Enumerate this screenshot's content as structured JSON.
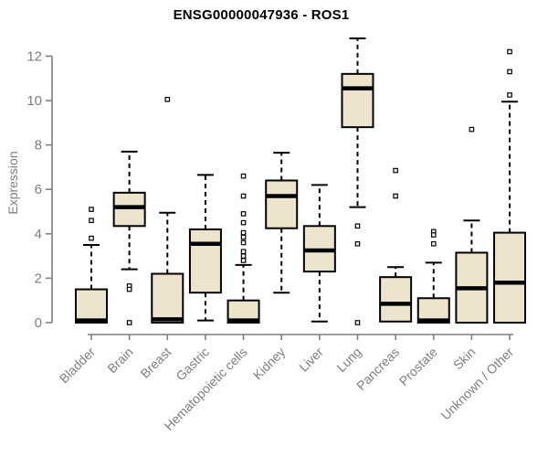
{
  "chart_data": {
    "type": "boxplot",
    "title": "ENSG00000047936 - ROS1",
    "ylabel": "Expression",
    "xlabel": "",
    "ylim": [
      0,
      12
    ],
    "yticks": [
      0,
      2,
      4,
      6,
      8,
      10,
      12
    ],
    "grid": false,
    "legend": "none",
    "categories": [
      "Bladder",
      "Brain",
      "Breast",
      "Gastric",
      "Hematopoietic cells",
      "Kidney",
      "Liver",
      "Lung",
      "Pancreas",
      "Prostate",
      "Skin",
      "Unknown / Other"
    ],
    "boxes": [
      {
        "category": "Bladder",
        "whisker_low": 0,
        "q1": 0,
        "median": 0.1,
        "q3": 1.5,
        "whisker_high": 3.5,
        "outliers": [
          5.1,
          4.6,
          3.8
        ]
      },
      {
        "category": "Brain",
        "whisker_low": 2.4,
        "q1": 4.35,
        "median": 5.2,
        "q3": 5.85,
        "whisker_high": 7.7,
        "outliers": [
          1.65,
          1.5,
          0.0
        ]
      },
      {
        "category": "Breast",
        "whisker_low": 0,
        "q1": 0,
        "median": 0.15,
        "q3": 2.2,
        "whisker_high": 4.95,
        "outliers": [
          10.05
        ]
      },
      {
        "category": "Gastric",
        "whisker_low": 0.1,
        "q1": 1.35,
        "median": 3.55,
        "q3": 4.2,
        "whisker_high": 6.65,
        "outliers": []
      },
      {
        "category": "Hematopoietic cells",
        "whisker_low": 0,
        "q1": 0,
        "median": 0.1,
        "q3": 1.0,
        "whisker_high": 2.6,
        "outliers": [
          6.6,
          5.7,
          4.9,
          4.5,
          4.05,
          3.85,
          3.6,
          3.2,
          3.0,
          2.8
        ]
      },
      {
        "category": "Kidney",
        "whisker_low": 1.35,
        "q1": 4.25,
        "median": 5.7,
        "q3": 6.4,
        "whisker_high": 7.65,
        "outliers": []
      },
      {
        "category": "Liver",
        "whisker_low": 0.05,
        "q1": 2.3,
        "median": 3.25,
        "q3": 4.35,
        "whisker_high": 6.2,
        "outliers": []
      },
      {
        "category": "Lung",
        "whisker_low": 5.2,
        "q1": 8.8,
        "median": 10.55,
        "q3": 11.2,
        "whisker_high": 12.8,
        "outliers": [
          4.35,
          3.55,
          0.0
        ]
      },
      {
        "category": "Pancreas",
        "whisker_low": 0.05,
        "q1": 0.05,
        "median": 0.85,
        "q3": 2.05,
        "whisker_high": 2.5,
        "outliers": [
          6.85,
          5.7
        ]
      },
      {
        "category": "Prostate",
        "whisker_low": 0,
        "q1": 0,
        "median": 0.1,
        "q3": 1.1,
        "whisker_high": 2.7,
        "outliers": [
          4.1,
          3.95,
          3.55
        ]
      },
      {
        "category": "Skin",
        "whisker_low": 0,
        "q1": 0,
        "median": 1.55,
        "q3": 3.15,
        "whisker_high": 4.6,
        "outliers": [
          8.7
        ]
      },
      {
        "category": "Unknown / Other",
        "whisker_low": 0,
        "q1": 0,
        "median": 1.8,
        "q3": 4.05,
        "whisker_high": 9.95,
        "outliers": [
          12.2,
          11.3,
          10.25
        ]
      }
    ],
    "colors": {
      "box_fill": "#EDE5CB",
      "box_border": "#000000",
      "median": "#000000",
      "whisker": "#000000",
      "outlier_stroke": "#000000",
      "outlier_fill": "#ffffff",
      "axis": "#7f7f7f",
      "tick_label": "#7e7e7e",
      "title": "#000000"
    }
  }
}
